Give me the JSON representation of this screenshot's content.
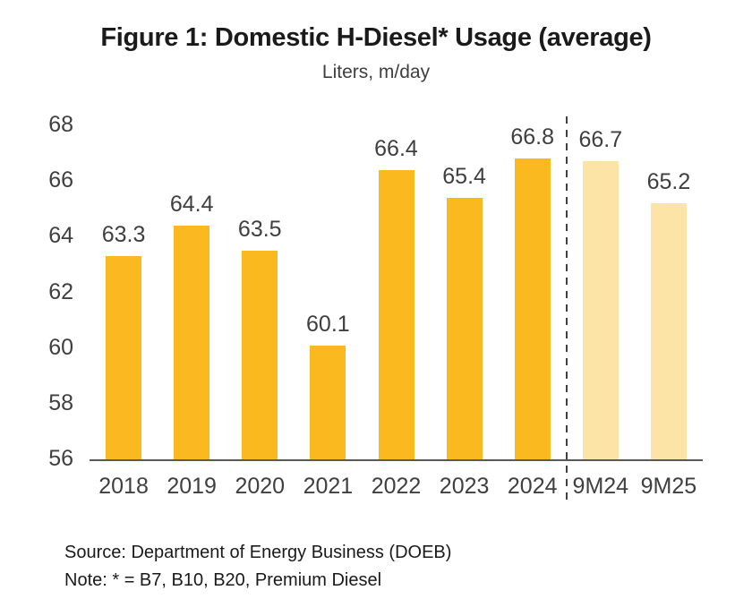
{
  "header": {
    "title": "Figure 1: Domestic H-Diesel* Usage (average)",
    "subtitle": "Liters, m/day"
  },
  "chart_data": {
    "type": "bar",
    "title": "Figure 1: Domestic H-Diesel* Usage (average)",
    "subtitle": "Liters, m/day",
    "categories": [
      "2018",
      "2019",
      "2020",
      "2021",
      "2022",
      "2023",
      "2024",
      "9M24",
      "9M25"
    ],
    "values": [
      63.3,
      64.4,
      63.5,
      60.1,
      66.4,
      65.4,
      66.8,
      66.7,
      65.2
    ],
    "groups": [
      "full-year",
      "full-year",
      "full-year",
      "full-year",
      "full-year",
      "full-year",
      "full-year",
      "partial-year",
      "partial-year"
    ],
    "colors": {
      "full-year": "#fbb920",
      "partial-year": "#fce3a6"
    },
    "ylim": [
      56,
      68
    ],
    "yticks": [
      56,
      58,
      60,
      62,
      64,
      66,
      68
    ],
    "divider_after_index": 6,
    "divider_color": "#404040",
    "axis_line_color": "#595959",
    "label_color": "#3f3f3f",
    "grid": false,
    "legend": "none",
    "value_labels": true,
    "xlabel": "",
    "ylabel": "Liters, m/day"
  },
  "footer": {
    "source": "Source: Department of Energy Business (DOEB)",
    "note": "Note: * = B7, B10, B20, Premium Diesel"
  }
}
